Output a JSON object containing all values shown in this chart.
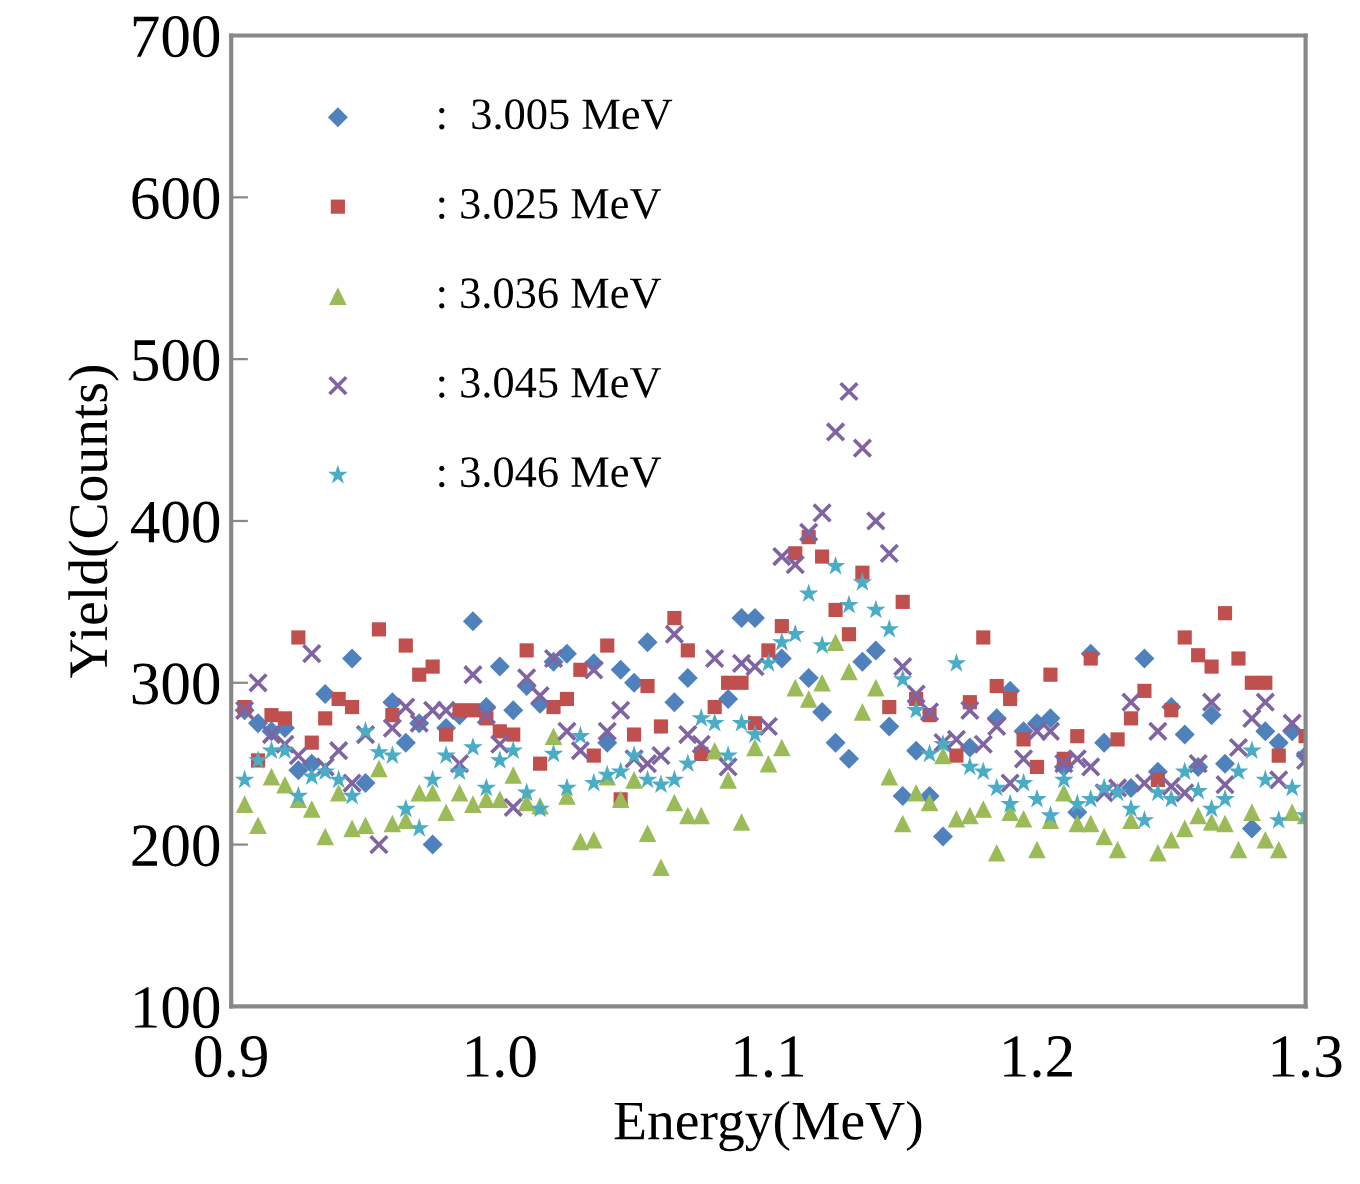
{
  "chart_data": {
    "type": "scatter",
    "xlabel": "Energy(MeV)",
    "ylabel": "Yield(Counts)",
    "xlim": [
      0.9,
      1.3
    ],
    "xticks": [
      {
        "value": 0.9,
        "label": "0.9"
      },
      {
        "value": 1.0,
        "label": "1.0"
      },
      {
        "value": 1.1,
        "label": "1.1"
      },
      {
        "value": 1.2,
        "label": "1.2"
      },
      {
        "value": 1.3,
        "label": "1.3"
      }
    ],
    "ylim": [
      100,
      700
    ],
    "yticks": [
      100,
      200,
      300,
      400,
      500,
      600,
      700
    ],
    "grid": false,
    "legend": "top left",
    "series": [
      {
        "name": ":  3.005 MeV",
        "color": "#4f81bd",
        "marker": "diamond",
        "x": [
          0.905,
          0.91,
          0.915,
          0.92,
          0.925,
          0.93,
          0.935,
          0.945,
          0.95,
          0.96,
          0.965,
          0.97,
          0.975,
          0.98,
          0.985,
          0.99,
          0.995,
          1.0,
          1.005,
          1.01,
          1.015,
          1.02,
          1.025,
          1.035,
          1.04,
          1.045,
          1.05,
          1.055,
          1.065,
          1.07,
          1.085,
          1.09,
          1.095,
          1.105,
          1.115,
          1.12,
          1.125,
          1.13,
          1.135,
          1.14,
          1.145,
          1.15,
          1.155,
          1.16,
          1.165,
          1.175,
          1.185,
          1.19,
          1.195,
          1.2,
          1.205,
          1.21,
          1.215,
          1.22,
          1.225,
          1.235,
          1.24,
          1.245,
          1.25,
          1.255,
          1.26,
          1.265,
          1.27,
          1.28,
          1.285,
          1.29,
          1.295,
          1.3
        ],
        "values": [
          283,
          275,
          270,
          272,
          246,
          250,
          293,
          315,
          238,
          288,
          263,
          275,
          200,
          272,
          280,
          338,
          285,
          310,
          283,
          298,
          287,
          313,
          318,
          312,
          263,
          308,
          300,
          325,
          288,
          303,
          290,
          340,
          340,
          315,
          303,
          282,
          263,
          253,
          313,
          320,
          273,
          230,
          258,
          230,
          205,
          260,
          278,
          295,
          270,
          275,
          278,
          248,
          220,
          318,
          263,
          235,
          315,
          245,
          285,
          268,
          248,
          280,
          250,
          210,
          270,
          263,
          270,
          255
        ]
      },
      {
        "name": ": 3.025 MeV",
        "color": "#c0504d",
        "marker": "square",
        "x": [
          0.905,
          0.91,
          0.915,
          0.92,
          0.925,
          0.93,
          0.935,
          0.94,
          0.945,
          0.955,
          0.96,
          0.965,
          0.97,
          0.975,
          0.98,
          0.985,
          0.99,
          0.995,
          1.0,
          1.005,
          1.01,
          1.015,
          1.02,
          1.025,
          1.03,
          1.035,
          1.04,
          1.045,
          1.05,
          1.055,
          1.06,
          1.065,
          1.07,
          1.075,
          1.08,
          1.085,
          1.09,
          1.095,
          1.1,
          1.105,
          1.11,
          1.115,
          1.12,
          1.125,
          1.13,
          1.135,
          1.14,
          1.145,
          1.15,
          1.155,
          1.16,
          1.17,
          1.175,
          1.18,
          1.185,
          1.19,
          1.195,
          1.2,
          1.205,
          1.21,
          1.215,
          1.22,
          1.23,
          1.235,
          1.24,
          1.245,
          1.25,
          1.255,
          1.26,
          1.265,
          1.27,
          1.275,
          1.28,
          1.285,
          1.29,
          1.3
        ],
        "values": [
          285,
          252,
          280,
          278,
          328,
          263,
          278,
          290,
          285,
          333,
          280,
          323,
          305,
          310,
          268,
          283,
          283,
          278,
          270,
          268,
          320,
          250,
          285,
          290,
          308,
          255,
          323,
          228,
          268,
          298,
          273,
          340,
          320,
          256,
          285,
          300,
          300,
          275,
          320,
          335,
          380,
          390,
          378,
          345,
          330,
          368,
          null,
          285,
          350,
          290,
          280,
          255,
          288,
          328,
          298,
          290,
          265,
          248,
          305,
          253,
          267,
          315,
          265,
          278,
          295,
          240,
          283,
          328,
          317,
          310,
          343,
          315,
          300,
          300,
          255,
          267
        ]
      },
      {
        "name": ": 3.036 MeV",
        "color": "#9bbb59",
        "marker": "triangle",
        "x": [
          0.905,
          0.91,
          0.915,
          0.92,
          0.925,
          0.93,
          0.935,
          0.94,
          0.945,
          0.95,
          0.955,
          0.96,
          0.965,
          0.97,
          0.975,
          0.98,
          0.985,
          0.99,
          0.995,
          1.0,
          1.005,
          1.01,
          1.015,
          1.02,
          1.025,
          1.03,
          1.035,
          1.04,
          1.045,
          1.05,
          1.055,
          1.06,
          1.065,
          1.07,
          1.075,
          1.08,
          1.085,
          1.09,
          1.095,
          1.1,
          1.105,
          1.11,
          1.115,
          1.12,
          1.125,
          1.13,
          1.135,
          1.14,
          1.145,
          1.15,
          1.155,
          1.16,
          1.165,
          1.17,
          1.175,
          1.18,
          1.185,
          1.19,
          1.195,
          1.2,
          1.205,
          1.21,
          1.215,
          1.22,
          1.225,
          1.23,
          1.235,
          1.245,
          1.25,
          1.255,
          1.26,
          1.265,
          1.27,
          1.275,
          1.28,
          1.285,
          1.29,
          1.295,
          1.3
        ],
        "values": [
          225,
          212,
          242,
          237,
          228,
          222,
          205,
          232,
          210,
          212,
          247,
          213,
          215,
          232,
          232,
          220,
          232,
          225,
          228,
          228,
          243,
          226,
          224,
          267,
          230,
          202,
          203,
          242,
          228,
          240,
          207,
          186,
          226,
          218,
          218,
          258,
          240,
          214,
          260,
          250,
          260,
          297,
          290,
          300,
          325,
          307,
          282,
          297,
          242,
          213,
          232,
          226,
          255,
          216,
          218,
          222,
          195,
          220,
          216,
          197,
          215,
          232,
          213,
          213,
          205,
          197,
          215,
          195,
          203,
          210,
          218,
          214,
          213,
          197,
          220,
          203,
          197,
          220,
          218
        ]
      },
      {
        "name": ": 3.045 MeV",
        "color": "#8064a2",
        "marker": "cross",
        "x": [
          0.905,
          0.91,
          0.915,
          0.92,
          0.925,
          0.93,
          0.935,
          0.94,
          0.945,
          0.95,
          0.955,
          0.96,
          0.965,
          0.97,
          0.975,
          0.98,
          0.985,
          0.99,
          0.995,
          1.0,
          1.005,
          1.01,
          1.015,
          1.02,
          1.025,
          1.03,
          1.035,
          1.04,
          1.045,
          1.05,
          1.055,
          1.06,
          1.065,
          1.07,
          1.075,
          1.08,
          1.085,
          1.09,
          1.095,
          1.1,
          1.105,
          1.11,
          1.115,
          1.12,
          1.125,
          1.13,
          1.135,
          1.14,
          1.145,
          1.15,
          1.155,
          1.16,
          1.165,
          1.17,
          1.175,
          1.18,
          1.185,
          1.19,
          1.195,
          1.2,
          1.205,
          1.21,
          1.215,
          1.22,
          1.225,
          1.23,
          1.235,
          1.24,
          1.245,
          1.25,
          1.255,
          1.26,
          1.265,
          1.27,
          1.275,
          1.28,
          1.285,
          1.29,
          1.295,
          1.3
        ],
        "values": [
          283,
          300,
          268,
          262,
          255,
          318,
          248,
          258,
          238,
          268,
          200,
          272,
          285,
          275,
          283,
          283,
          250,
          305,
          280,
          262,
          223,
          303,
          292,
          315,
          270,
          258,
          308,
          270,
          283,
          253,
          250,
          255,
          330,
          268,
          262,
          315,
          248,
          312,
          310,
          273,
          378,
          373,
          393,
          405,
          455,
          480,
          445,
          400,
          380,
          310,
          293,
          282,
          263,
          265,
          283,
          262,
          273,
          238,
          253,
          270,
          270,
          250,
          253,
          248,
          232,
          235,
          288,
          238,
          270,
          236,
          232,
          250,
          288,
          237,
          260,
          278,
          288,
          240,
          275,
          252
        ]
      },
      {
        "name": ": 3.046 MeV",
        "color": "#4bacc6",
        "marker": "star",
        "x": [
          0.905,
          0.91,
          0.915,
          0.92,
          0.925,
          0.93,
          0.935,
          0.94,
          0.945,
          0.95,
          0.955,
          0.96,
          0.965,
          0.97,
          0.975,
          0.98,
          0.985,
          0.99,
          0.995,
          1.0,
          1.005,
          1.01,
          1.015,
          1.02,
          1.025,
          1.03,
          1.035,
          1.04,
          1.045,
          1.05,
          1.055,
          1.06,
          1.065,
          1.07,
          1.075,
          1.08,
          1.085,
          1.09,
          1.095,
          1.1,
          1.105,
          1.11,
          1.115,
          1.12,
          1.125,
          1.13,
          1.135,
          1.14,
          1.145,
          1.15,
          1.155,
          1.16,
          1.165,
          1.17,
          1.175,
          1.18,
          1.185,
          1.19,
          1.195,
          1.2,
          1.205,
          1.21,
          1.215,
          1.22,
          1.225,
          1.23,
          1.235,
          1.24,
          1.245,
          1.25,
          1.255,
          1.26,
          1.265,
          1.27,
          1.275,
          1.28,
          1.285,
          1.29,
          1.295,
          1.3
        ],
        "values": [
          240,
          252,
          258,
          258,
          230,
          242,
          245,
          240,
          230,
          270,
          257,
          255,
          222,
          210,
          240,
          255,
          245,
          260,
          235,
          252,
          258,
          232,
          222,
          256,
          235,
          267,
          238,
          243,
          245,
          255,
          240,
          237,
          240,
          250,
          278,
          275,
          255,
          275,
          268,
          312,
          325,
          330,
          355,
          323,
          372,
          348,
          362,
          345,
          333,
          302,
          283,
          256,
          262,
          312,
          248,
          245,
          235,
          225,
          238,
          228,
          218,
          240,
          225,
          228,
          235,
          232,
          222,
          215,
          232,
          228,
          245,
          233,
          222,
          228,
          245,
          258,
          240,
          215,
          235,
          218
        ]
      }
    ]
  }
}
